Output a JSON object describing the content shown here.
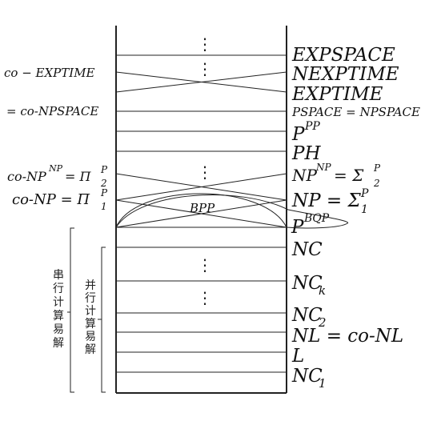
{
  "right_labels": {
    "expspace": "EXPSPACE",
    "nexptime": "NEXPTIME",
    "exptime": "EXPTIME",
    "pspace": "PSPACE = NPSPACE",
    "ppp_base": "P",
    "ppp_sup": "PP",
    "ph": "PH",
    "np_np_base": "NP",
    "np_np_sup": "NP",
    "np_np_eq": " = Σ",
    "np_np_sub": "2",
    "np_np_sup2": "P",
    "np_base": "NP = Σ",
    "np_sub": "1",
    "np_sup": "P",
    "pbqp_base": "P",
    "pbqp_sup": "BQP",
    "nc": "NC",
    "nck_base": "NC",
    "nck_sub": "k",
    "nc2_base": "NC",
    "nc2_sub": "2",
    "nl": "NL = co-NL",
    "l": "L",
    "nc1_base": "NC",
    "nc1_sub": "1"
  },
  "left_labels": {
    "co_exptime": "co − EXPTIME",
    "co_npspace": "= co-NPSPACE",
    "co_np_np_text": "co-NP",
    "co_np_np_sup": "NP",
    "co_np_np_eq": " = Π",
    "co_np_np_sub": "2",
    "co_np_np_sup2": "P",
    "co_np_text": "co-NP = Π",
    "co_np_sub": "1",
    "co_np_sup": "P"
  },
  "bpp_label": "BPP",
  "dots": "⋮",
  "brackets": {
    "serial": "串行计算易解",
    "parallel": "并行计算易解"
  }
}
